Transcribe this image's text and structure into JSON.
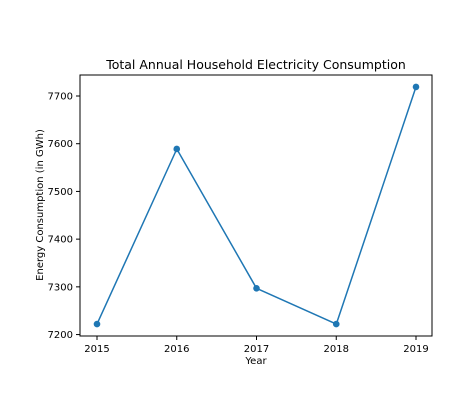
{
  "chart_data": {
    "type": "line",
    "title": "Total Annual Household Electricity Consumption",
    "xlabel": "Year",
    "ylabel": "Energy Consumption (in GWh)",
    "x": [
      "2015",
      "2016",
      "2017",
      "2018",
      "2019"
    ],
    "series": [
      {
        "values": [
          7222,
          7589,
          7297,
          7222,
          7719
        ]
      }
    ],
    "yticks": [
      7200,
      7300,
      7400,
      7500,
      7600,
      7700
    ],
    "ylim": [
      7197,
      7744
    ],
    "grid": false,
    "legend": "none",
    "colors": {
      "line": "#1f77b4",
      "marker": "#1f77b4",
      "axes": "#000000",
      "background": "#ffffff"
    }
  }
}
